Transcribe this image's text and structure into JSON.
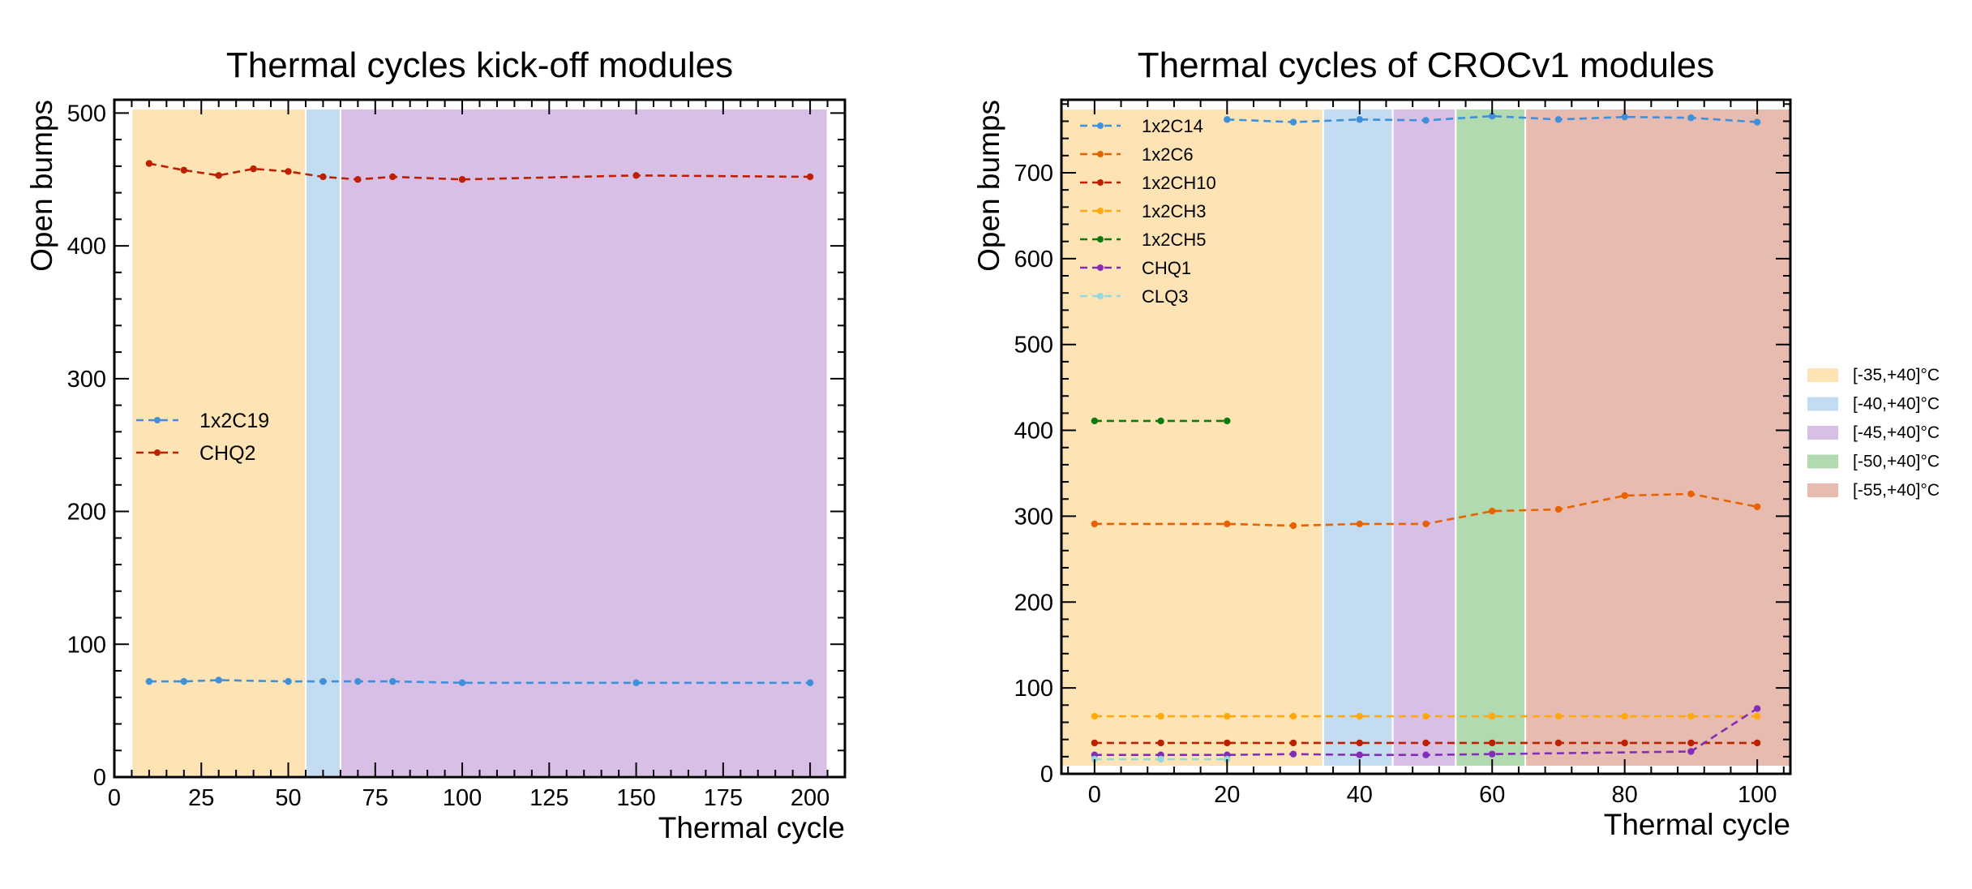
{
  "figure": {
    "legend_bands_title": "",
    "bands": [
      {
        "label": "[-35,+40]°C",
        "color": "#fee3b4"
      },
      {
        "label": "[-40,+40]°C",
        "color": "#c4dcf2"
      },
      {
        "label": "[-45,+40]°C",
        "color": "#d8bfe6"
      },
      {
        "label": "[-50,+40]°C",
        "color": "#b2dab0"
      },
      {
        "label": "[-55,+40]°C",
        "color": "#e8bbb0"
      }
    ]
  },
  "chart_data": [
    {
      "type": "line",
      "title": "Thermal cycles kick-off modules",
      "xlabel": "Thermal cycle",
      "ylabel": "Open bumps",
      "xlim": [
        0,
        210
      ],
      "ylim": [
        0,
        510
      ],
      "xticks": [
        0,
        25,
        50,
        75,
        100,
        125,
        150,
        175,
        200
      ],
      "yticks": [
        0,
        100,
        200,
        300,
        400,
        500
      ],
      "legend_position": "center-left",
      "bands": [
        {
          "x0": 5,
          "x1": 55,
          "band": 0
        },
        {
          "x0": 55,
          "x1": 65,
          "band": 1
        },
        {
          "x0": 65,
          "x1": 205,
          "band": 2
        }
      ],
      "series": [
        {
          "name": "1x2C19",
          "color": "#3f90da",
          "x": [
            10,
            20,
            30,
            50,
            60,
            70,
            80,
            100,
            150,
            200
          ],
          "values": [
            72,
            72,
            73,
            72,
            72,
            72,
            72,
            71,
            71,
            71
          ]
        },
        {
          "name": "CHQ2",
          "color": "#bd1f01",
          "x": [
            10,
            20,
            30,
            40,
            50,
            60,
            70,
            80,
            100,
            150,
            200
          ],
          "values": [
            462,
            457,
            453,
            458,
            456,
            452,
            450,
            452,
            450,
            453,
            452
          ]
        }
      ]
    },
    {
      "type": "line",
      "title": "Thermal cycles of CROCv1 modules",
      "xlabel": "Thermal cycle",
      "ylabel": "Open bumps",
      "xlim": [
        -5,
        105
      ],
      "ylim": [
        0,
        785
      ],
      "xticks": [
        0,
        20,
        40,
        60,
        80,
        100
      ],
      "yticks": [
        0,
        100,
        200,
        300,
        400,
        500,
        600,
        700
      ],
      "legend_position": "top-left",
      "bands": [
        {
          "x0": -5,
          "x1": 34.5,
          "band": 0
        },
        {
          "x0": 34.5,
          "x1": 45,
          "band": 1
        },
        {
          "x0": 45,
          "x1": 54.5,
          "band": 2
        },
        {
          "x0": 54.5,
          "x1": 65,
          "band": 3
        },
        {
          "x0": 65,
          "x1": 105,
          "band": 4
        }
      ],
      "series": [
        {
          "name": "1x2C14",
          "color": "#3f90da",
          "x": [
            20,
            30,
            40,
            50,
            60,
            70,
            80,
            90,
            100
          ],
          "values": [
            762,
            759,
            762,
            761,
            766,
            762,
            765,
            764,
            759
          ]
        },
        {
          "name": "1x2C6",
          "color": "#e76300",
          "x": [
            0,
            20,
            30,
            40,
            50,
            60,
            70,
            80,
            90,
            100
          ],
          "values": [
            291,
            291,
            289,
            291,
            291,
            306,
            308,
            324,
            326,
            311
          ]
        },
        {
          "name": "1x2CH10",
          "color": "#bd1f01",
          "x": [
            0,
            10,
            20,
            30,
            40,
            50,
            60,
            70,
            80,
            90,
            100
          ],
          "values": [
            36,
            36,
            36,
            36,
            36,
            36,
            36,
            36,
            36,
            36,
            36
          ]
        },
        {
          "name": "1x2CH3",
          "color": "#ffa90e",
          "x": [
            0,
            10,
            20,
            30,
            40,
            50,
            60,
            70,
            80,
            90,
            100
          ],
          "values": [
            67,
            67,
            67,
            67,
            67,
            67,
            67,
            67,
            67,
            67,
            67
          ]
        },
        {
          "name": "1x2CH5",
          "color": "#0d7a0d",
          "x": [
            0,
            10,
            20
          ],
          "values": [
            411,
            411,
            411
          ]
        },
        {
          "name": "CHQ1",
          "color": "#832db6",
          "x": [
            0,
            10,
            20,
            30,
            40,
            50,
            60,
            90,
            100
          ],
          "values": [
            22,
            22,
            22,
            23,
            22,
            22,
            23,
            26,
            76
          ]
        },
        {
          "name": "CLQ3",
          "color": "#92dadd",
          "x": [
            0,
            10,
            20
          ],
          "values": [
            17,
            17,
            17
          ]
        }
      ]
    }
  ]
}
